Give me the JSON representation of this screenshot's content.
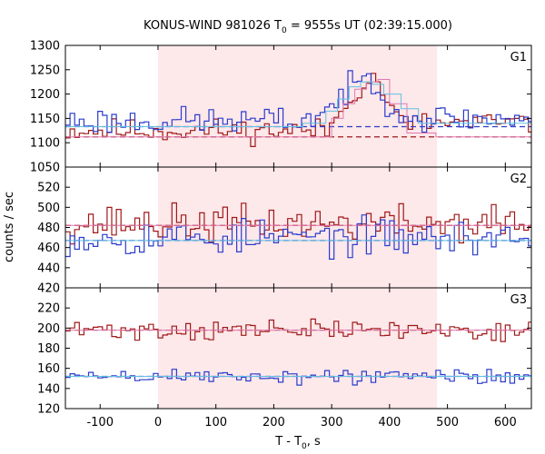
{
  "chart_data": {
    "type": "line",
    "title_main": "KONUS-WIND 981026 T",
    "title_sub": "0",
    "title_rest": " = 9555s UT (02:39:15.000)",
    "xlabel_main": "T - T",
    "xlabel_sub": "0",
    "xlabel_rest": ", s",
    "ylabel": "counts / sec",
    "xlim": [
      -160,
      645
    ],
    "x_ticks": [
      -100,
      0,
      100,
      200,
      300,
      400,
      500,
      600
    ],
    "highlight_interval": [
      0,
      482
    ],
    "highlight_color": "#fde8ea",
    "colors": {
      "high": "#a01818",
      "low": "#2a3ccc",
      "high_fit": "#e07ab0",
      "low_fit": "#60c0e0"
    },
    "panels": [
      {
        "label": "G1",
        "ylim": [
          1050,
          1300
        ],
        "y_ticks": [
          1050,
          1100,
          1150,
          1200,
          1250,
          1300
        ],
        "series": [
          {
            "role": "high",
            "baseline": 1112,
            "level": 1108,
            "noise": 12,
            "seed": 11,
            "peak": {
              "x": [
                290,
                310,
                320,
                340,
                360,
                375,
                390,
                405,
                420
              ],
              "y": [
                1125,
                1150,
                1175,
                1205,
                1225,
                1232,
                1205,
                1165,
                1140
              ]
            }
          },
          {
            "role": "low",
            "baseline": 1133,
            "level": 1132,
            "noise": 14,
            "seed": 23,
            "peak": {
              "x": [
                250,
                280,
                300,
                320,
                340,
                355,
                370,
                385,
                400,
                420,
                440
              ],
              "y": [
                1145,
                1160,
                1175,
                1200,
                1215,
                1235,
                1225,
                1205,
                1185,
                1165,
                1150
              ]
            }
          },
          {
            "role": "high_fit",
            "points": {
              "x": [
                -160,
                290,
                300,
                320,
                340,
                360,
                380,
                400,
                430,
                480,
                645
              ],
              "y": [
                1112,
                1112,
                1150,
                1180,
                1210,
                1225,
                1230,
                1180,
                1120,
                1112,
                1112
              ]
            }
          },
          {
            "role": "low_fit",
            "points": {
              "x": [
                -160,
                250,
                290,
                310,
                330,
                350,
                370,
                390,
                420,
                450,
                645
              ],
              "y": [
                1133,
                1140,
                1165,
                1190,
                1215,
                1225,
                1220,
                1200,
                1170,
                1140,
                1133
              ]
            }
          }
        ]
      },
      {
        "label": "G2",
        "ylim": [
          420,
          540
        ],
        "y_ticks": [
          420,
          440,
          460,
          480,
          500,
          520
        ],
        "series": [
          {
            "role": "high",
            "baseline": 482,
            "level": 484,
            "noise": 9,
            "seed": 37
          },
          {
            "role": "low",
            "baseline": 467,
            "level": 470,
            "noise": 9,
            "seed": 53
          },
          {
            "role": "high_fit",
            "points": {
              "x": [
                -160,
                645
              ],
              "y": [
                482,
                482
              ]
            }
          },
          {
            "role": "low_fit",
            "points": {
              "x": [
                -160,
                645
              ],
              "y": [
                467,
                467
              ]
            }
          }
        ]
      },
      {
        "label": "G3",
        "ylim": [
          120,
          240
        ],
        "y_ticks": [
          120,
          140,
          160,
          180,
          200,
          220
        ],
        "series": [
          {
            "role": "high",
            "baseline": 198,
            "level": 198,
            "noise": 5,
            "seed": 71
          },
          {
            "role": "low",
            "baseline": 152,
            "level": 152,
            "noise": 4,
            "seed": 89
          },
          {
            "role": "high_fit",
            "points": {
              "x": [
                -160,
                645
              ],
              "y": [
                198,
                198
              ]
            }
          },
          {
            "role": "low_fit",
            "points": {
              "x": [
                -160,
                645
              ],
              "y": [
                152,
                152
              ]
            }
          }
        ]
      }
    ]
  }
}
